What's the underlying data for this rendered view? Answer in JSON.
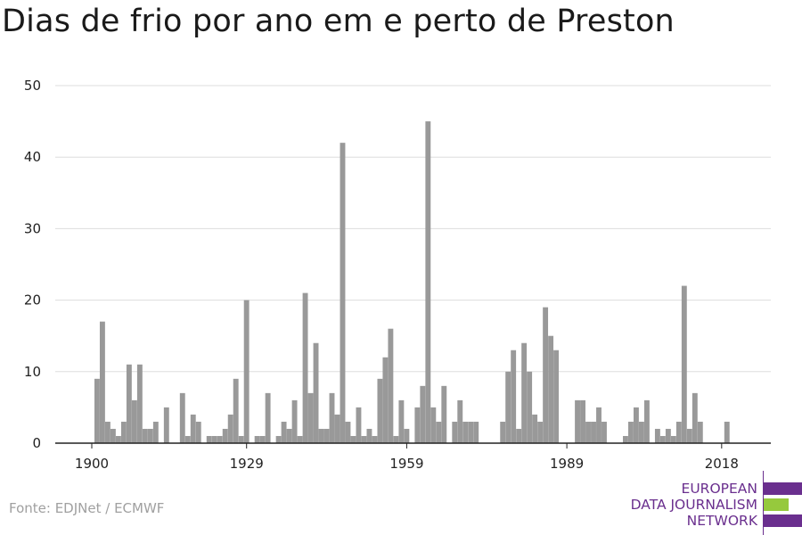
{
  "chart_data": {
    "type": "bar",
    "title": "Dias de frio por ano em e perto de Preston",
    "xlabel": "",
    "ylabel": "",
    "ylim": [
      0,
      50
    ],
    "yticks": [
      0,
      10,
      20,
      30,
      40,
      50
    ],
    "xlim": [
      1900,
      2024
    ],
    "xticks": [
      1900,
      1929,
      1959,
      1989,
      2018
    ],
    "grid": true,
    "bar_color": "#999999",
    "x": [
      1901,
      1902,
      1903,
      1904,
      1905,
      1906,
      1907,
      1908,
      1909,
      1910,
      1911,
      1912,
      1913,
      1914,
      1915,
      1916,
      1917,
      1918,
      1919,
      1920,
      1921,
      1922,
      1923,
      1924,
      1925,
      1926,
      1927,
      1928,
      1929,
      1930,
      1931,
      1932,
      1933,
      1934,
      1935,
      1936,
      1937,
      1938,
      1939,
      1940,
      1941,
      1942,
      1943,
      1944,
      1945,
      1946,
      1947,
      1948,
      1949,
      1950,
      1951,
      1952,
      1953,
      1954,
      1955,
      1956,
      1957,
      1958,
      1959,
      1960,
      1961,
      1962,
      1963,
      1964,
      1965,
      1966,
      1967,
      1968,
      1969,
      1970,
      1971,
      1972,
      1973,
      1974,
      1975,
      1976,
      1977,
      1978,
      1979,
      1980,
      1981,
      1982,
      1983,
      1984,
      1985,
      1986,
      1987,
      1988,
      1989,
      1990,
      1991,
      1992,
      1993,
      1994,
      1995,
      1996,
      1997,
      1998,
      1999,
      2000,
      2001,
      2002,
      2003,
      2004,
      2005,
      2006,
      2007,
      2008,
      2009,
      2010,
      2011,
      2012,
      2013,
      2014,
      2015,
      2016,
      2017,
      2018,
      2019,
      2020
    ],
    "values": [
      9,
      17,
      3,
      2,
      1,
      3,
      11,
      6,
      11,
      2,
      2,
      3,
      0,
      5,
      0,
      0,
      7,
      1,
      4,
      3,
      0,
      1,
      1,
      1,
      2,
      4,
      9,
      1,
      20,
      0,
      1,
      1,
      7,
      0,
      1,
      3,
      2,
      6,
      1,
      21,
      7,
      14,
      2,
      2,
      7,
      4,
      42,
      3,
      1,
      5,
      1,
      2,
      1,
      9,
      12,
      16,
      1,
      6,
      2,
      0,
      5,
      8,
      45,
      5,
      3,
      8,
      0,
      3,
      6,
      3,
      3,
      3,
      0,
      0,
      0,
      0,
      3,
      10,
      13,
      2,
      14,
      10,
      4,
      3,
      19,
      15,
      13,
      0,
      0,
      0,
      6,
      6,
      3,
      3,
      5,
      3,
      0,
      0,
      0,
      1,
      3,
      5,
      3,
      6,
      0,
      2,
      1,
      2,
      1,
      3,
      22,
      2,
      7,
      3,
      0,
      0,
      0,
      0,
      3,
      0
    ],
    "source": "Fonte: EDJNet / ECMWF",
    "colors": {
      "bar": "#999999",
      "grid": "#dddddd",
      "axis": "#222222",
      "tick_label": "#222222",
      "brand_purple": "#6a2f8e",
      "brand_green": "#96c93d"
    }
  },
  "logo": {
    "line1": "EUROPEAN",
    "line2": "DATA JOURNALISM",
    "line3": "NETWORK"
  }
}
